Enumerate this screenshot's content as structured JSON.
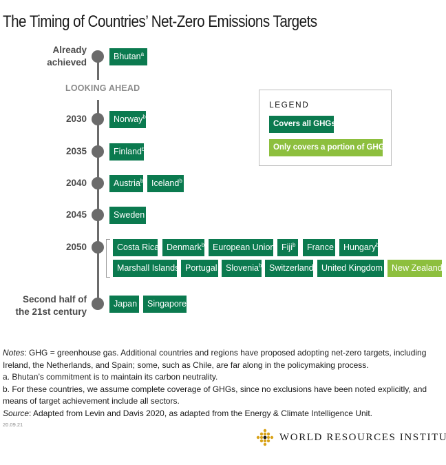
{
  "title": "The Timing of Countries’ Net-Zero Emissions Targets",
  "section_label": "LOOKING AHEAD",
  "legend": {
    "title": "LEGEND",
    "items": [
      {
        "label": "Covers all GHGs",
        "color": "#0b7a4f"
      },
      {
        "label": "Only covers a portion of GHGs",
        "color": "#8dbf3e"
      }
    ]
  },
  "timeline": [
    {
      "label_line1": "Already",
      "label_line2": "achieved",
      "countries": [
        {
          "name": "Bhutan",
          "note": "a",
          "coverage": "all"
        }
      ]
    },
    {
      "label_line1": "2030",
      "countries": [
        {
          "name": "Norway",
          "note": "b",
          "coverage": "all"
        }
      ]
    },
    {
      "label_line1": "2035",
      "countries": [
        {
          "name": "Finland",
          "note": "b",
          "coverage": "all"
        }
      ]
    },
    {
      "label_line1": "2040",
      "countries": [
        {
          "name": "Austria",
          "note": "b",
          "coverage": "all"
        },
        {
          "name": "Iceland",
          "note": "b",
          "coverage": "all"
        }
      ]
    },
    {
      "label_line1": "2045",
      "countries": [
        {
          "name": "Sweden",
          "coverage": "all"
        }
      ]
    },
    {
      "label_line1": "2050",
      "countries": [
        {
          "name": "Costa Rica",
          "coverage": "all"
        },
        {
          "name": "Denmark",
          "note": "b",
          "coverage": "all"
        },
        {
          "name": "European Union",
          "coverage": "all"
        },
        {
          "name": "Fiji",
          "note": "b",
          "coverage": "all"
        },
        {
          "name": "France",
          "coverage": "all"
        },
        {
          "name": "Hungary",
          "note": "b",
          "coverage": "all"
        },
        {
          "name": "Marshall Islands",
          "coverage": "all"
        },
        {
          "name": "Portugal",
          "coverage": "all"
        },
        {
          "name": "Slovenia",
          "note": "b",
          "coverage": "all"
        },
        {
          "name": "Switzerland",
          "note": "b",
          "coverage": "all"
        },
        {
          "name": "United Kingdom",
          "coverage": "all"
        },
        {
          "name": "New Zealand",
          "coverage": "partial"
        }
      ]
    },
    {
      "label_line1": "Second half of",
      "label_line2": "the 21st century",
      "countries": [
        {
          "name": "Japan",
          "coverage": "all"
        },
        {
          "name": "Singapore",
          "coverage": "all"
        }
      ]
    }
  ],
  "notes": {
    "notes_prefix": "Notes",
    "notes_text": ": GHG = greenhouse gas. Additional countries and regions have proposed adopting net-zero targets, including Ireland, the Netherlands, and Spain; some, such as Chile, are far along in the policymaking process.",
    "note_a": "a. Bhutan’s commitment is to maintain its carbon neutrality.",
    "note_b": "b. For these countries, we assume complete coverage of GHGs, since no exclusions have been noted explicitly, and means of target achievement include all sectors.",
    "source_prefix": "Source",
    "source_text": ": Adapted from Levin and Davis 2020, as adapted from the Energy & Climate Intelligence Unit."
  },
  "date_code": "20.09.21",
  "logo_text": "WORLD RESOURCES INSTITUTE",
  "colors": {
    "all": "#0b7a4f",
    "partial": "#8dbf3e",
    "axis": "#6b6b6b"
  }
}
